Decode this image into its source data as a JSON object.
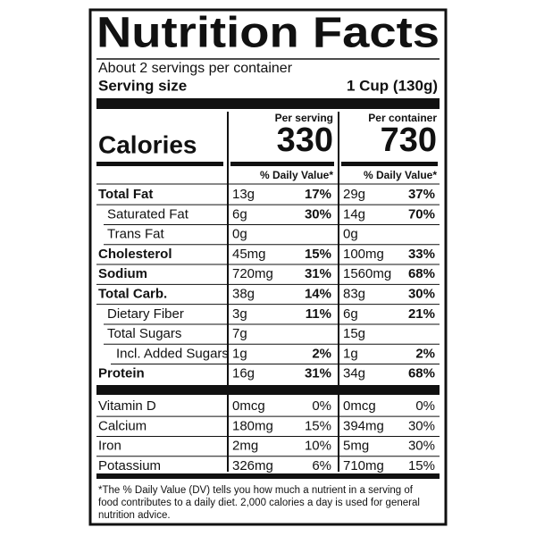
{
  "header": {
    "title": "Nutrition Facts",
    "servings": "About 2 servings per container",
    "serving_size_label": "Serving size",
    "serving_size": "1 Cup (130g)"
  },
  "calories_label": "Calories",
  "columns": [
    {
      "heading": "Per serving",
      "calories": 330,
      "dv_heading": "% Daily Value*"
    },
    {
      "heading": "Per container",
      "calories": 730,
      "dv_heading": "% Daily Value*"
    }
  ],
  "nutrients": [
    {
      "name": "Total Fat",
      "bold": true,
      "indent": 0,
      "values": [
        [
          "13g",
          "17%"
        ],
        [
          "29g",
          "37%"
        ]
      ]
    },
    {
      "name": "Saturated Fat",
      "bold": false,
      "indent": 1,
      "values": [
        [
          "6g",
          "30%"
        ],
        [
          "14g",
          "70%"
        ]
      ]
    },
    {
      "name": "Trans Fat",
      "bold": false,
      "indent": 1,
      "values": [
        [
          "0g"
        ],
        [
          "0g"
        ]
      ]
    },
    {
      "name": "Cholesterol",
      "bold": true,
      "indent": 0,
      "values": [
        [
          "45mg",
          "15%"
        ],
        [
          "100mg",
          "33%"
        ]
      ]
    },
    {
      "name": "Sodium",
      "bold": true,
      "indent": 0,
      "values": [
        [
          "720mg",
          "31%"
        ],
        [
          "1560mg",
          "68%"
        ]
      ]
    },
    {
      "name": "Total Carb.",
      "bold": true,
      "indent": 0,
      "values": [
        [
          "38g",
          "14%"
        ],
        [
          "83g",
          "30%"
        ]
      ]
    },
    {
      "name": "Dietary Fiber",
      "bold": false,
      "indent": 1,
      "values": [
        [
          "3g",
          "11%"
        ],
        [
          "6g",
          "21%"
        ]
      ]
    },
    {
      "name": "Total Sugars",
      "bold": false,
      "indent": 1,
      "values": [
        [
          "7g"
        ],
        [
          "15g"
        ]
      ]
    },
    {
      "name": "Incl. Added Sugars",
      "bold": false,
      "indent": 2,
      "values": [
        [
          "1g",
          "2%"
        ],
        [
          "1g",
          "2%"
        ]
      ]
    },
    {
      "name": "Protein",
      "bold": true,
      "indent": 0,
      "values": [
        [
          "16g",
          "31%"
        ],
        [
          "34g",
          "68%"
        ]
      ]
    }
  ],
  "vitamins": [
    {
      "name": "Vitamin D",
      "values": [
        [
          "0mcg",
          "0%"
        ],
        [
          "0mcg",
          "0%"
        ]
      ]
    },
    {
      "name": "Calcium",
      "values": [
        [
          "180mg",
          "15%"
        ],
        [
          "394mg",
          "30%"
        ]
      ]
    },
    {
      "name": "Iron",
      "values": [
        [
          "2mg",
          "10%"
        ],
        [
          "5mg",
          "30%"
        ]
      ]
    },
    {
      "name": "Potassium",
      "values": [
        [
          "326mg",
          "6%"
        ],
        [
          "710mg",
          "15%"
        ]
      ]
    }
  ],
  "footnote": [
    "*The % Daily Value (DV) tells you how much a nutrient in a serving of",
    "food contributes to a daily diet. 2,000 calories a day is used for general",
    "nutrition advice."
  ]
}
